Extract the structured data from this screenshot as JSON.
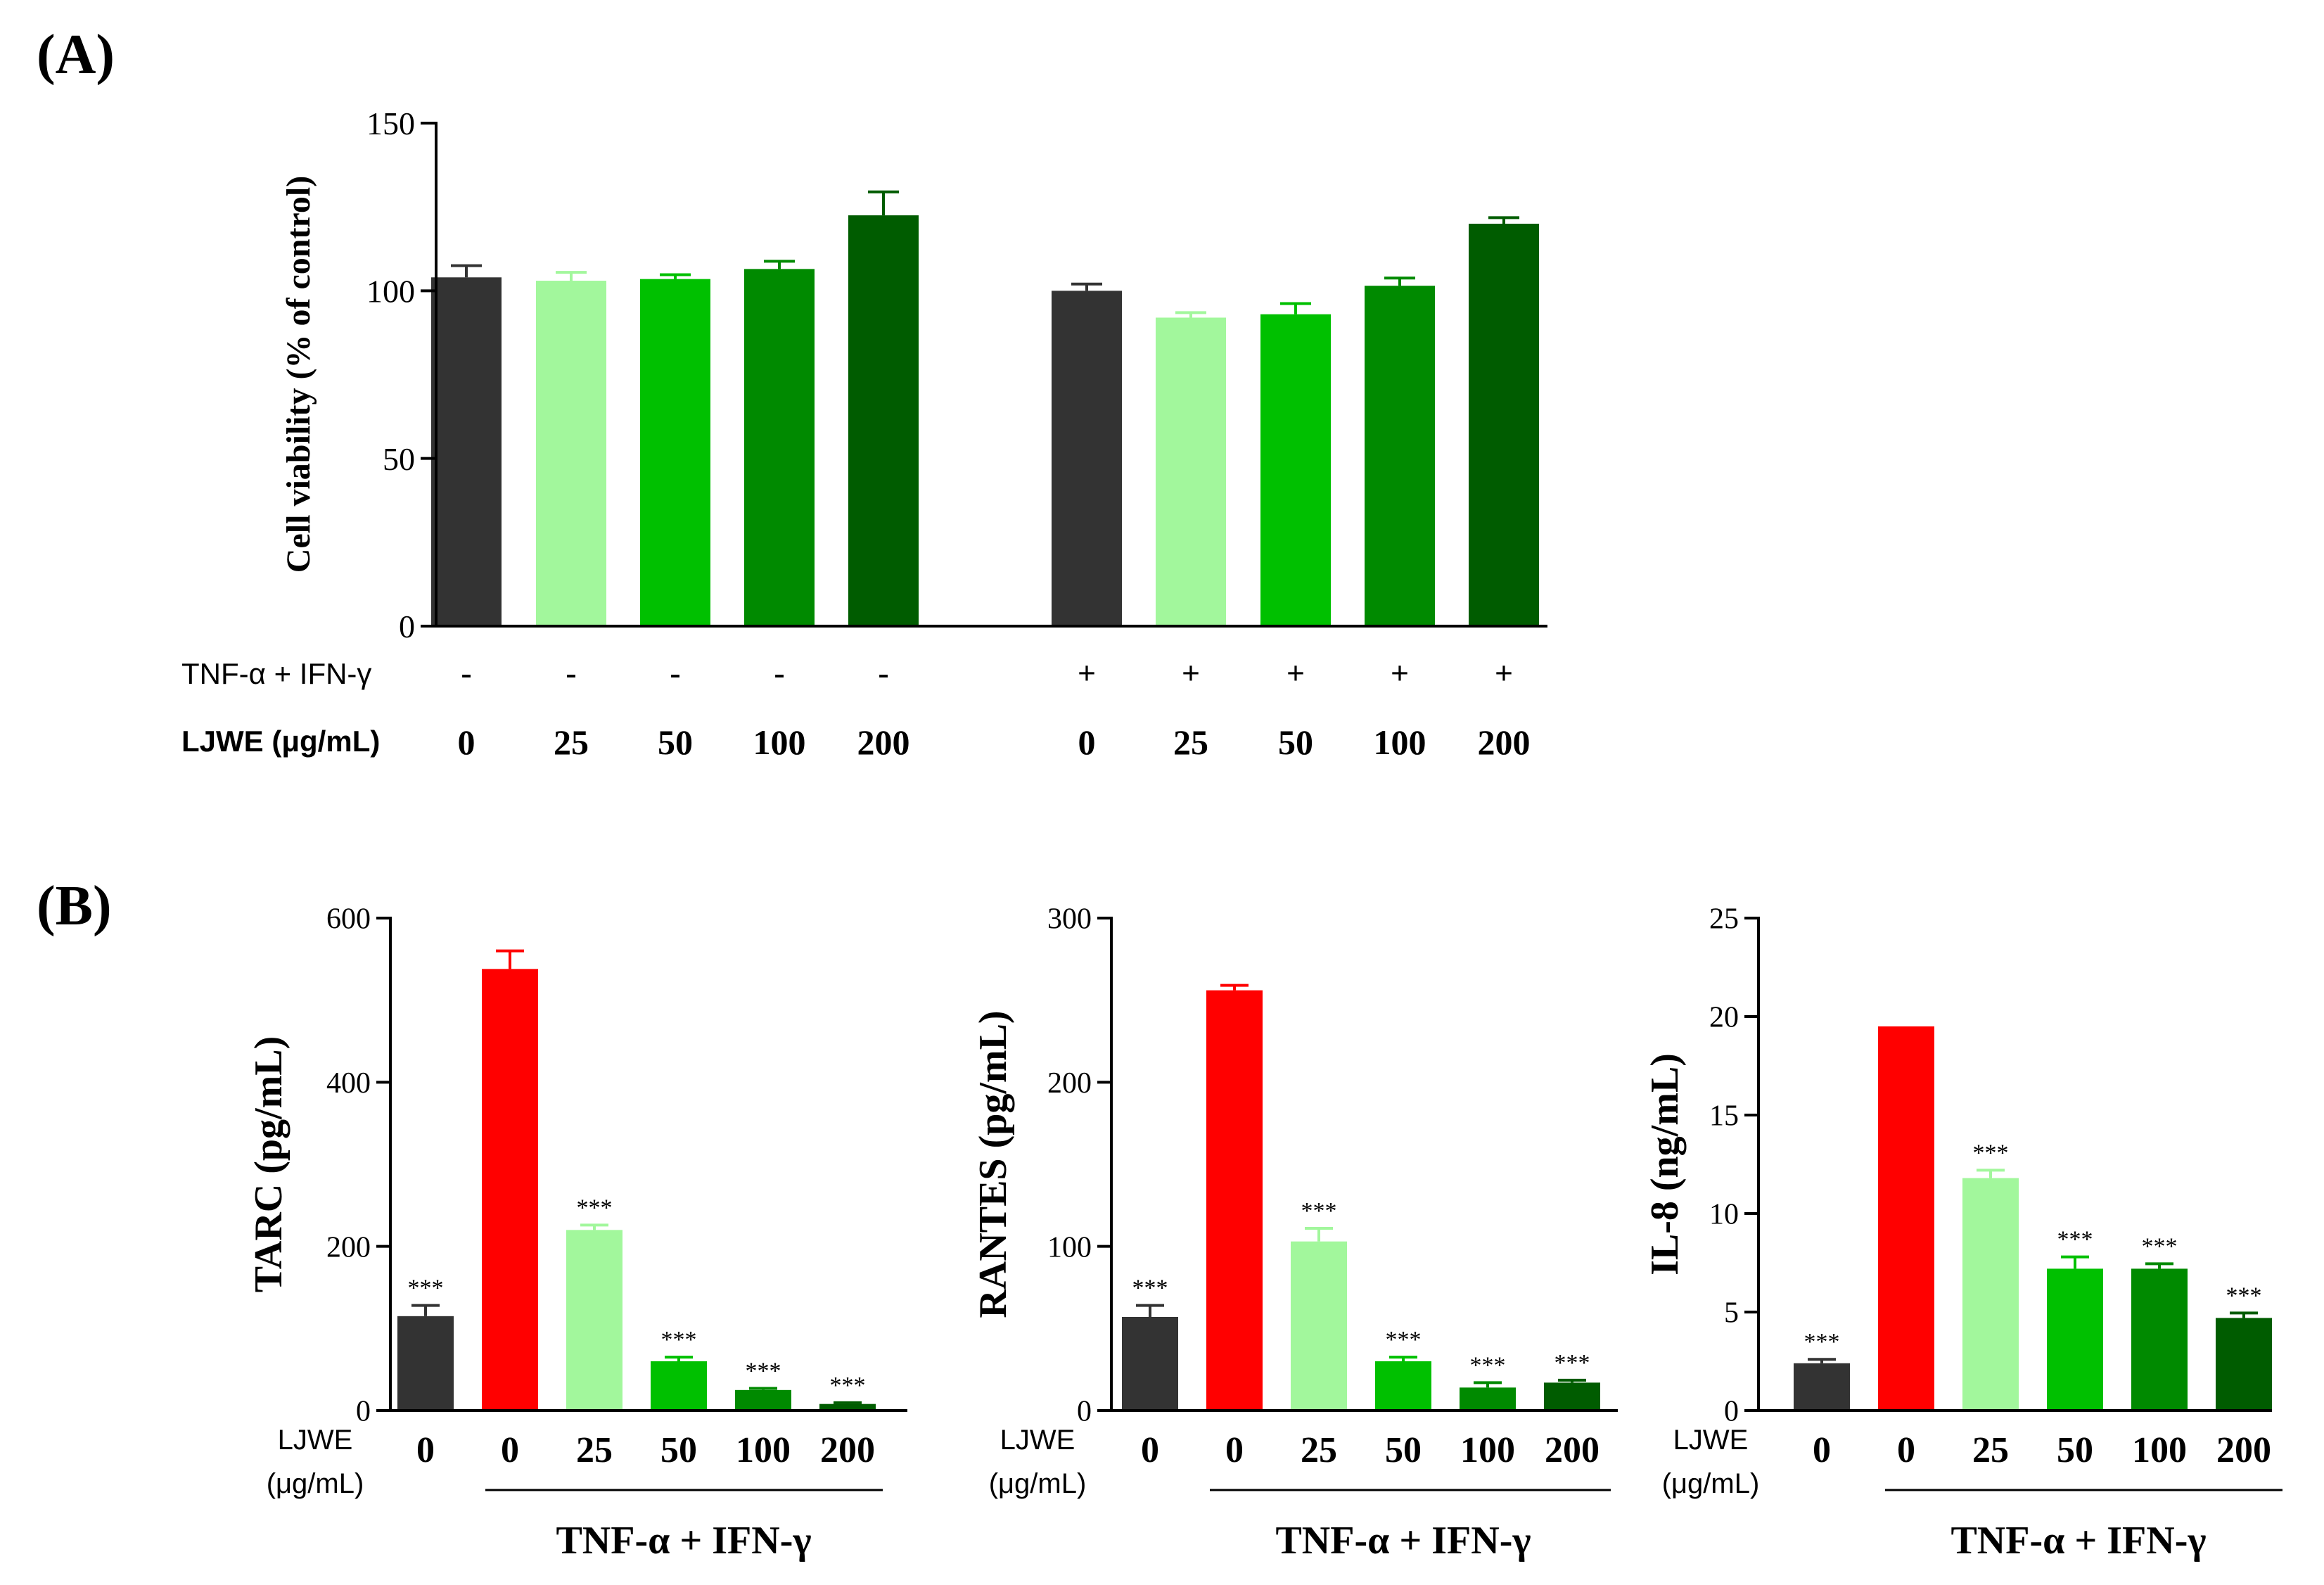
{
  "panel_a": {
    "label": "(A)",
    "treatment_label": "TNF-α + IFN-γ",
    "dose_label": "LJWE (μg/mL)",
    "treatment_signs": [
      "-",
      "-",
      "-",
      "-",
      "-",
      "+",
      "+",
      "+",
      "+",
      "+"
    ],
    "doses": [
      "0",
      "25",
      "50",
      "100",
      "200",
      "0",
      "25",
      "50",
      "100",
      "200"
    ]
  },
  "panel_b": {
    "label": "(B)",
    "dose_label_line1": "LJWE",
    "dose_label_line2": "(μg/mL)",
    "doses": [
      "0",
      "0",
      "25",
      "50",
      "100",
      "200"
    ],
    "treatment_label": "TNF-α + IFN-γ"
  },
  "colors": [
    "#333333",
    "#ff0000",
    "#a2f79c",
    "#00c000",
    "#008a00",
    "#005c00"
  ],
  "chart_data": [
    {
      "type": "bar",
      "title": "",
      "ylabel": "Cell viability (% of control)",
      "ylim": [
        0,
        150
      ],
      "yticks": [
        0,
        50,
        100,
        150
      ],
      "categories": [
        "- / 0",
        "- / 25",
        "- / 50",
        "- / 100",
        "- / 200",
        "+ / 0",
        "+ / 25",
        "+ / 50",
        "+ / 100",
        "+ / 200"
      ],
      "values": [
        104,
        103,
        103.5,
        106.5,
        122.5,
        100,
        92,
        93,
        101.5,
        120
      ],
      "errors": [
        3.5,
        2.5,
        1.3,
        2.3,
        7,
        2,
        1.5,
        3.2,
        2.3,
        1.8
      ],
      "significance": [
        "",
        "",
        "",
        "",
        "",
        "",
        "",
        "",
        "",
        ""
      ],
      "color_index": [
        0,
        2,
        3,
        4,
        5,
        0,
        2,
        3,
        4,
        5
      ]
    },
    {
      "type": "bar",
      "ylabel": "TARC (pg/mL)",
      "ylim": [
        0,
        600
      ],
      "yticks": [
        0,
        200,
        400,
        600
      ],
      "categories": [
        "0",
        "0",
        "25",
        "50",
        "100",
        "200"
      ],
      "values": [
        115,
        538,
        220,
        60,
        25,
        8
      ],
      "errors": [
        13,
        22,
        6,
        5,
        2,
        1.5
      ],
      "significance": [
        "***",
        "",
        "***",
        "***",
        "***",
        "***"
      ],
      "color_index": [
        0,
        1,
        2,
        3,
        4,
        5
      ]
    },
    {
      "type": "bar",
      "ylabel": "RANTES (pg/mL)",
      "ylim": [
        0,
        300
      ],
      "yticks": [
        0,
        100,
        200,
        300
      ],
      "categories": [
        "0",
        "0",
        "25",
        "50",
        "100",
        "200"
      ],
      "values": [
        57,
        256,
        103,
        30,
        14,
        17
      ],
      "errors": [
        7,
        3,
        8,
        2.5,
        3,
        1.5
      ],
      "significance": [
        "***",
        "",
        "***",
        "***",
        "***",
        "***"
      ],
      "color_index": [
        0,
        1,
        2,
        3,
        4,
        5
      ]
    },
    {
      "type": "bar",
      "ylabel": "IL-8 (ng/mL)",
      "ylim": [
        0,
        25
      ],
      "yticks": [
        0,
        5,
        10,
        15,
        20,
        25
      ],
      "categories": [
        "0",
        "0",
        "25",
        "50",
        "100",
        "200"
      ],
      "values": [
        2.4,
        19.5,
        11.8,
        7.2,
        7.2,
        4.7
      ],
      "errors": [
        0.2,
        0,
        0.4,
        0.6,
        0.25,
        0.25
      ],
      "significance": [
        "***",
        "",
        "***",
        "***",
        "***",
        "***"
      ],
      "color_index": [
        0,
        1,
        2,
        3,
        4,
        5
      ]
    }
  ]
}
